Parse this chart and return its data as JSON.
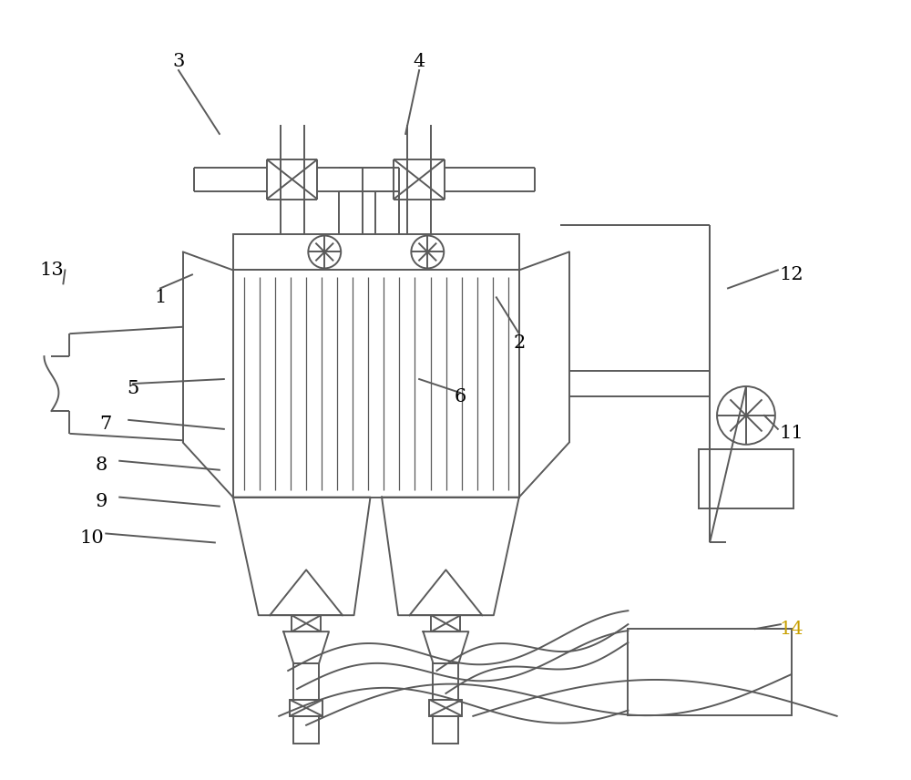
{
  "bg_color": "#ffffff",
  "line_color": "#5a5a5a",
  "label_color": "#000000",
  "label14_color": "#c8a000",
  "figsize": [
    10.0,
    8.56
  ],
  "dpi": 100
}
